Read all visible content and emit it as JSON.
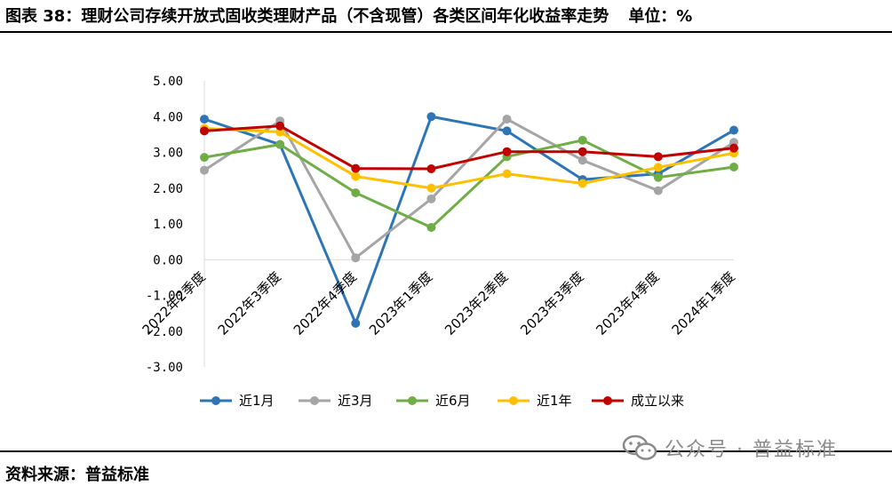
{
  "title": {
    "text": "图表 38：理财公司存续开放式固收类理财产品（不含现管）各类区间年化收益率走势",
    "unit": "单位：%"
  },
  "source": "资料来源：普益标准",
  "watermark": {
    "text": "公众号 · 普益标准",
    "icon": "wechat-icon"
  },
  "chart_data": {
    "type": "line",
    "categories": [
      "2022年2季度",
      "2022年3季度",
      "2022年4季度",
      "2023年1季度",
      "2023年2季度",
      "2023年3季度",
      "2023年4季度",
      "2024年1季度"
    ],
    "y_ticks": [
      "5.00",
      "4.00",
      "3.00",
      "2.00",
      "1.00",
      "0.00",
      "-1.00",
      "-2.00",
      "-3.00"
    ],
    "ylim": [
      -3,
      5
    ],
    "grid": false,
    "legend_position": "bottom",
    "series": [
      {
        "name": "近1月",
        "color": "#2e75b6",
        "values": [
          3.93,
          3.22,
          -1.78,
          4.0,
          3.6,
          2.24,
          2.4,
          3.62
        ]
      },
      {
        "name": "近3月",
        "color": "#a5a5a5",
        "values": [
          2.5,
          3.88,
          0.05,
          1.7,
          3.93,
          2.78,
          1.93,
          3.28
        ]
      },
      {
        "name": "近6月",
        "color": "#70ad47",
        "values": [
          2.86,
          3.22,
          1.87,
          0.9,
          2.88,
          3.34,
          2.3,
          2.59
        ]
      },
      {
        "name": "近1年",
        "color": "#ffc000",
        "values": [
          3.67,
          3.57,
          2.33,
          2.0,
          2.4,
          2.13,
          2.58,
          2.98
        ]
      },
      {
        "name": "成立以来",
        "color": "#c00000",
        "values": [
          3.6,
          3.74,
          2.55,
          2.54,
          3.02,
          3.02,
          2.88,
          3.12
        ]
      }
    ]
  }
}
